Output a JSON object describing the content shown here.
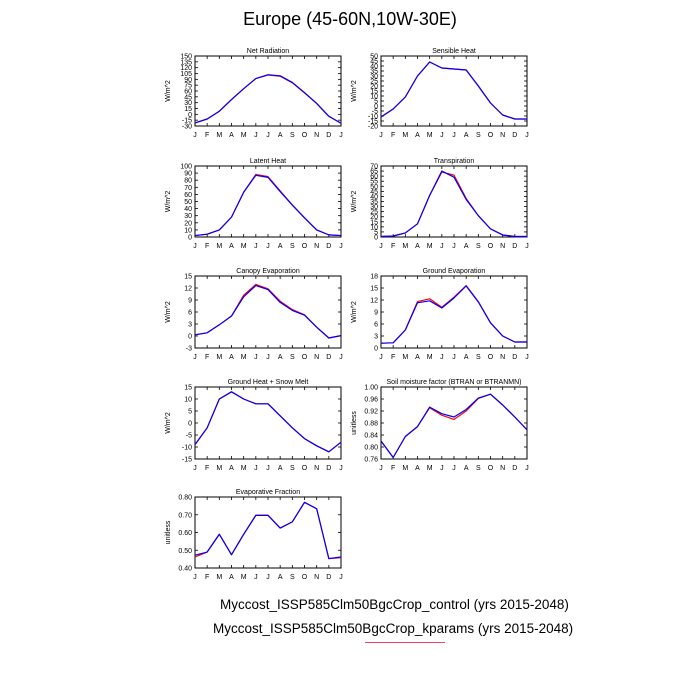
{
  "figure": {
    "title": "Europe (45-60N,10W-30E)",
    "legend": [
      {
        "label": "Myccost_ISSP585Clm50BgcCrop_control (yrs 2015-2048)",
        "color": "#0000ff"
      },
      {
        "label": "Myccost_ISSP585Clm50BgcCrop_kparams (yrs 2015-2048)",
        "color": "#ff0000"
      }
    ]
  },
  "chart_data": [
    {
      "type": "line",
      "title": "Net Radiation",
      "ylabel": "W/m^2",
      "categories": [
        "J",
        "F",
        "M",
        "A",
        "M",
        "J",
        "J",
        "A",
        "S",
        "O",
        "N",
        "D",
        "J"
      ],
      "ylim": [
        -30,
        150
      ],
      "yticks": [
        -30,
        -15,
        0,
        15,
        30,
        45,
        60,
        75,
        90,
        105,
        120,
        135,
        150
      ],
      "series": [
        {
          "name": "control",
          "color": "#0000ff",
          "values": [
            -22,
            -12,
            8,
            38,
            66,
            92,
            102,
            99,
            82,
            56,
            28,
            -5,
            -23
          ]
        },
        {
          "name": "kparams",
          "color": "#ff0000",
          "values": [
            -22,
            -12,
            8,
            38,
            66,
            92,
            101,
            98,
            81,
            55,
            28,
            -5,
            -23
          ]
        }
      ]
    },
    {
      "type": "line",
      "title": "Sensible Heat",
      "ylabel": "W/m^2",
      "categories": [
        "J",
        "F",
        "M",
        "A",
        "M",
        "J",
        "J",
        "A",
        "S",
        "O",
        "N",
        "D",
        "J"
      ],
      "ylim": [
        -20,
        50
      ],
      "yticks": [
        -20,
        -15,
        -10,
        -5,
        0,
        5,
        10,
        15,
        20,
        25,
        30,
        35,
        40,
        45,
        50
      ],
      "series": [
        {
          "name": "control",
          "color": "#0000ff",
          "values": [
            -11,
            -3,
            9,
            30,
            44,
            38,
            37,
            36,
            20,
            3,
            -9,
            -13,
            -13
          ]
        },
        {
          "name": "kparams",
          "color": "#ff0000",
          "values": [
            -11,
            -3,
            9,
            30,
            44,
            38,
            37,
            36,
            20,
            3,
            -9,
            -13,
            -13
          ]
        }
      ]
    },
    {
      "type": "line",
      "title": "Latent Heat",
      "ylabel": "W/m^2",
      "categories": [
        "J",
        "F",
        "M",
        "A",
        "M",
        "J",
        "J",
        "A",
        "S",
        "O",
        "N",
        "D",
        "J"
      ],
      "ylim": [
        0,
        100
      ],
      "yticks": [
        0,
        10,
        20,
        30,
        40,
        50,
        60,
        70,
        80,
        90,
        100
      ],
      "series": [
        {
          "name": "control",
          "color": "#0000ff",
          "values": [
            2,
            4,
            10,
            28,
            63,
            87,
            84,
            64,
            45,
            27,
            10,
            3,
            2
          ]
        },
        {
          "name": "kparams",
          "color": "#ff0000",
          "values": [
            2,
            4,
            10,
            28,
            63,
            88,
            85,
            65,
            45,
            27,
            10,
            3,
            2
          ]
        }
      ]
    },
    {
      "type": "line",
      "title": "Transpiration",
      "ylabel": "W/m^2",
      "categories": [
        "J",
        "F",
        "M",
        "A",
        "M",
        "J",
        "J",
        "A",
        "S",
        "O",
        "N",
        "D",
        "J"
      ],
      "ylim": [
        0,
        70
      ],
      "yticks": [
        0,
        5,
        10,
        15,
        20,
        25,
        30,
        35,
        40,
        45,
        50,
        55,
        60,
        65,
        70
      ],
      "series": [
        {
          "name": "control",
          "color": "#0000ff",
          "values": [
            0.5,
            1,
            4,
            13,
            41,
            65,
            59,
            37,
            21,
            8,
            2,
            0.5,
            0.5
          ]
        },
        {
          "name": "kparams",
          "color": "#ff0000",
          "values": [
            0.5,
            1,
            4,
            13,
            41,
            64,
            61,
            38,
            21,
            8,
            2,
            0.5,
            0.5
          ]
        }
      ]
    },
    {
      "type": "line",
      "title": "Canopy Evaporation",
      "ylabel": "W/m^2",
      "categories": [
        "J",
        "F",
        "M",
        "A",
        "M",
        "J",
        "J",
        "A",
        "S",
        "O",
        "N",
        "D",
        "J"
      ],
      "ylim": [
        -3,
        15
      ],
      "yticks": [
        -3,
        0,
        3,
        6,
        9,
        12,
        15
      ],
      "series": [
        {
          "name": "control",
          "color": "#0000ff",
          "values": [
            0.3,
            0.8,
            2.8,
            5,
            9.8,
            12.6,
            11.6,
            8.4,
            6.4,
            5.2,
            2.2,
            -0.5,
            0.1
          ]
        },
        {
          "name": "kparams",
          "color": "#ff0000",
          "values": [
            0.3,
            0.8,
            2.8,
            5,
            10.2,
            12.9,
            11.8,
            8.7,
            6.6,
            5.3,
            2.2,
            -0.5,
            0.1
          ]
        }
      ]
    },
    {
      "type": "line",
      "title": "Ground Evaporation",
      "ylabel": "W/m^2",
      "categories": [
        "J",
        "F",
        "M",
        "A",
        "M",
        "J",
        "J",
        "A",
        "S",
        "O",
        "N",
        "D",
        "J"
      ],
      "ylim": [
        0,
        18
      ],
      "yticks": [
        0,
        3,
        6,
        9,
        12,
        15,
        18
      ],
      "series": [
        {
          "name": "control",
          "color": "#0000ff",
          "values": [
            1.2,
            1.3,
            4.5,
            11.3,
            11.8,
            10,
            12.5,
            15.5,
            11.5,
            6.3,
            3,
            1.5,
            1.5
          ]
        },
        {
          "name": "kparams",
          "color": "#ff0000",
          "values": [
            1.2,
            1.3,
            4.5,
            11.6,
            12.3,
            10.2,
            12.7,
            15.6,
            11.6,
            6.3,
            3,
            1.5,
            1.5
          ]
        }
      ]
    },
    {
      "type": "line",
      "title": "Ground Heat + Snow Melt",
      "ylabel": "W/m^2",
      "categories": [
        "J",
        "F",
        "M",
        "A",
        "M",
        "J",
        "J",
        "A",
        "S",
        "O",
        "N",
        "D",
        "J"
      ],
      "ylim": [
        -15,
        15
      ],
      "yticks": [
        -15,
        -10,
        -5,
        0,
        5,
        10,
        15
      ],
      "series": [
        {
          "name": "control",
          "color": "#0000ff",
          "values": [
            -9,
            -2,
            10,
            13,
            10,
            8,
            8,
            3,
            -2,
            -6.5,
            -9.5,
            -12,
            -8
          ]
        },
        {
          "name": "kparams",
          "color": "#ff0000",
          "values": [
            -9,
            -2,
            10,
            13,
            10,
            8,
            8,
            3,
            -2,
            -6.5,
            -9.5,
            -12,
            -8
          ]
        }
      ]
    },
    {
      "type": "line",
      "title": "Soil moisture factor (BTRAN or BTRANMN)",
      "ylabel": "unitless",
      "categories": [
        "J",
        "F",
        "M",
        "A",
        "M",
        "J",
        "J",
        "A",
        "S",
        "O",
        "N",
        "D",
        "J"
      ],
      "ylim": [
        0.76,
        1.0
      ],
      "yticks": [
        "0.76",
        "0.80",
        "0.84",
        "0.88",
        "0.92",
        "0.96",
        "1.00"
      ],
      "series": [
        {
          "name": "control",
          "color": "#0000ff",
          "values": [
            0.82,
            0.765,
            0.835,
            0.868,
            0.933,
            0.911,
            0.9,
            0.925,
            0.963,
            0.976,
            0.94,
            0.9,
            0.857
          ]
        },
        {
          "name": "kparams",
          "color": "#ff0000",
          "values": [
            0.82,
            0.765,
            0.835,
            0.868,
            0.931,
            0.906,
            0.892,
            0.92,
            0.962,
            0.976,
            0.94,
            0.9,
            0.857
          ]
        }
      ]
    },
    {
      "type": "line",
      "title": "Evaporative Fraction",
      "ylabel": "unitless",
      "categories": [
        "J",
        "F",
        "M",
        "A",
        "M",
        "J",
        "J",
        "A",
        "S",
        "O",
        "N",
        "D",
        "J"
      ],
      "ylim": [
        0.4,
        0.8
      ],
      "yticks": [
        "0.40",
        "0.50",
        "0.60",
        "0.70",
        "0.80"
      ],
      "series": [
        {
          "name": "control",
          "color": "#0000ff",
          "values": [
            0.472,
            0.49,
            0.59,
            0.475,
            0.59,
            0.696,
            0.696,
            0.625,
            0.66,
            0.77,
            0.734,
            0.453,
            0.462
          ]
        },
        {
          "name": "kparams",
          "color": "#ff0000",
          "values": [
            0.462,
            0.49,
            0.59,
            0.475,
            0.59,
            0.698,
            0.698,
            0.625,
            0.66,
            0.77,
            0.734,
            0.453,
            0.458
          ]
        }
      ]
    }
  ]
}
